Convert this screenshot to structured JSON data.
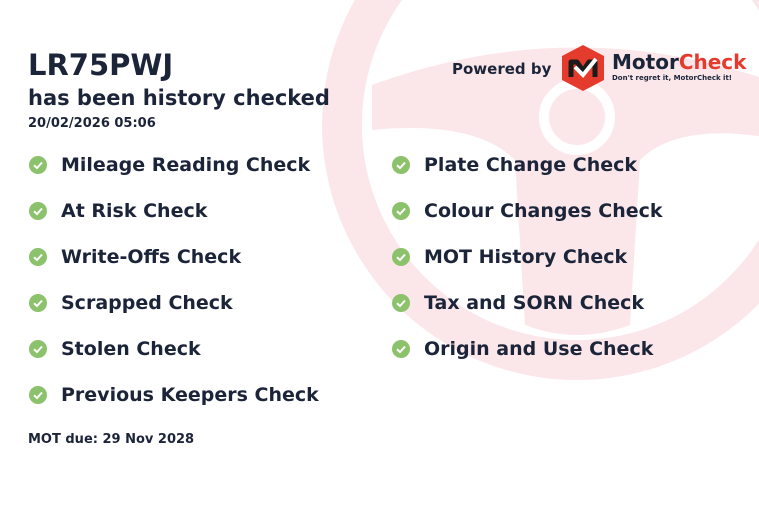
{
  "vehicle": {
    "registration": "LR75PWJ",
    "status": "has been history checked",
    "checked_at": "20/02/2026 05:06"
  },
  "branding": {
    "powered_by": "Powered by",
    "brand_part1": "Motor",
    "brand_part2": "Check",
    "tagline": "Don't regret it, MotorCheck it!",
    "brand_color": "#e53b2d"
  },
  "checks_left": [
    "Mileage Reading Check",
    "At Risk Check",
    "Write-Offs Check",
    "Scrapped Check",
    "Stolen Check",
    "Previous Keepers Check"
  ],
  "checks_right": [
    "Plate Change Check",
    "Colour Changes Check",
    "MOT History Check",
    "Tax and SORN Check",
    "Origin and Use Check"
  ],
  "check_icon": "check-circle-icon",
  "check_color": "#8cc26c",
  "mot": {
    "label": "MOT due: 29 Nov 2028"
  }
}
